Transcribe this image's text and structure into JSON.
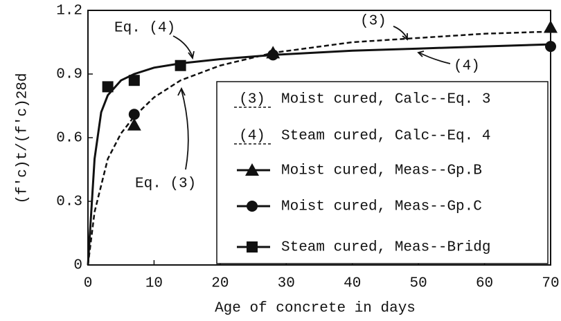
{
  "chart_data": {
    "type": "line",
    "xlabel": "Age of concrete in days",
    "ylabel": "(f'c)t/(f'c)28d",
    "xlim": [
      0,
      70
    ],
    "xticks": [
      0,
      10,
      20,
      30,
      40,
      50,
      60,
      70
    ],
    "ylim": [
      0,
      1.2
    ],
    "yticks": [
      0,
      0.3,
      0.6,
      0.9,
      1.2
    ],
    "legend": "lower right",
    "annotations": [
      "Eq. (4)",
      "Eq. (3)",
      "(3)",
      "(4)"
    ],
    "series": [
      {
        "name": "Moist cured, Calc--Eq. 3",
        "marker_label": "(3)",
        "style": "dashed",
        "color": "#111111",
        "x": [
          0,
          1,
          3,
          5,
          7,
          10,
          14,
          20,
          28,
          40,
          50,
          60,
          70
        ],
        "values": [
          0,
          0.25,
          0.5,
          0.62,
          0.7,
          0.79,
          0.87,
          0.94,
          1.0,
          1.05,
          1.07,
          1.09,
          1.1
        ]
      },
      {
        "name": "Steam cured, Calc--Eq. 4",
        "marker_label": "(4)",
        "style": "solid",
        "color": "#111111",
        "x": [
          0,
          1,
          2,
          3,
          5,
          7,
          10,
          14,
          20,
          28,
          40,
          50,
          60,
          70
        ],
        "values": [
          0,
          0.5,
          0.72,
          0.8,
          0.87,
          0.9,
          0.93,
          0.95,
          0.97,
          0.99,
          1.01,
          1.02,
          1.03,
          1.04
        ]
      },
      {
        "name": "Moist cured, Meas--Gp.B",
        "style": "triangle",
        "color": "#111111",
        "x": [
          7,
          28,
          70
        ],
        "values": [
          0.66,
          1.0,
          1.12
        ]
      },
      {
        "name": "Moist cured, Meas--Gp.C",
        "style": "circle",
        "color": "#111111",
        "x": [
          7,
          28,
          70
        ],
        "values": [
          0.71,
          0.99,
          1.03
        ]
      },
      {
        "name": "Steam cured, Meas--Bridg",
        "style": "square",
        "color": "#111111",
        "x": [
          3,
          7,
          14
        ],
        "values": [
          0.84,
          0.87,
          0.94
        ]
      }
    ]
  }
}
